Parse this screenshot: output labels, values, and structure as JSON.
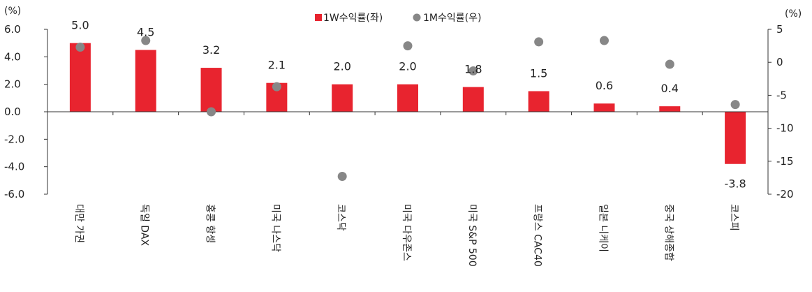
{
  "chart_data": {
    "type": "bar",
    "categories": [
      "대만 가권",
      "독일 DAX",
      "홍콩 항셍",
      "미국 나스닥",
      "코스닥",
      "미국 다우존스",
      "미국 S&P 500",
      "프랑스 CAC40",
      "일본 니케이",
      "중국 상해종합",
      "코스피"
    ],
    "series": [
      {
        "name": "1W수익률(좌)",
        "type": "bar",
        "axis": "left",
        "color": "#e8242f",
        "values": [
          5.0,
          4.5,
          3.2,
          2.1,
          2.0,
          2.0,
          1.8,
          1.5,
          0.6,
          0.4,
          -3.8
        ],
        "labels": [
          "5.0",
          "4.5",
          "3.2",
          "2.1",
          "2.0",
          "2.0",
          "1.8",
          "1.5",
          "0.6",
          "0.4",
          "-3.8"
        ]
      },
      {
        "name": "1M수익률(우)",
        "type": "scatter",
        "axis": "right",
        "color": "#878787",
        "values": [
          2.3,
          3.3,
          -7.5,
          -3.7,
          -17.3,
          2.5,
          -1.3,
          3.1,
          3.3,
          -0.3,
          -6.4
        ]
      }
    ],
    "y_left": {
      "unit": "(%)",
      "ylim": [
        -6.0,
        6.0
      ],
      "ticks": [
        6.0,
        4.0,
        2.0,
        0.0,
        -2.0,
        -4.0,
        -6.0
      ],
      "tick_labels": [
        "6.0",
        "4.0",
        "2.0",
        "0.0",
        "-2.0",
        "-4.0",
        "-6.0"
      ]
    },
    "y_right": {
      "unit": "(%)",
      "ylim": [
        -20,
        5
      ],
      "ticks": [
        5,
        0,
        -5,
        -10,
        -15,
        -20
      ],
      "tick_labels": [
        "5",
        "0",
        "-5",
        "-10",
        "-15",
        "-20"
      ]
    },
    "grid": false,
    "legend_position": "top-center"
  }
}
